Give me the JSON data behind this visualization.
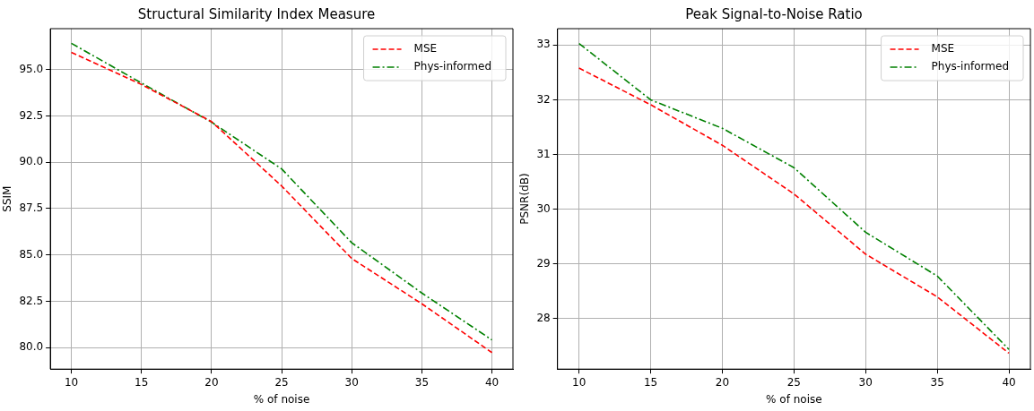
{
  "chart_data": [
    {
      "type": "line",
      "title": "Structural Similarity Index Measure",
      "xlabel": "% of noise",
      "ylabel": "SSIM",
      "x": [
        10,
        15,
        20,
        25,
        30,
        35,
        40
      ],
      "series": [
        {
          "name": "MSE",
          "color": "#ff0000",
          "line_style": "dashed",
          "values": [
            95.92,
            94.19,
            92.19,
            88.72,
            84.81,
            82.37,
            79.74
          ]
        },
        {
          "name": "Phys-informed",
          "color": "#008000",
          "line_style": "dashdot",
          "values": [
            96.41,
            94.27,
            92.16,
            89.64,
            85.66,
            82.95,
            80.42
          ]
        }
      ],
      "xlim": [
        8.5,
        41.5
      ],
      "xticks": [
        10,
        15,
        20,
        25,
        30,
        35,
        40
      ],
      "ylim": [
        78.85,
        97.2
      ],
      "yticks": [
        {
          "value": 80,
          "label": "80.0"
        },
        {
          "value": 82.5,
          "label": "82.5"
        },
        {
          "value": 85,
          "label": "85.0"
        },
        {
          "value": 87.5,
          "label": "87.5"
        },
        {
          "value": 90,
          "label": "90.0"
        },
        {
          "value": 92.5,
          "label": "92.5"
        },
        {
          "value": 95,
          "label": "95.0"
        }
      ],
      "grid": true,
      "legend": "top right",
      "marker": "none"
    },
    {
      "type": "line",
      "title": "Peak Signal-to-Noise Ratio",
      "xlabel": "% of noise",
      "ylabel": "PSNR(dB)",
      "x": [
        10,
        15,
        20,
        25,
        30,
        35,
        40
      ],
      "series": [
        {
          "name": "MSE",
          "color": "#ff0000",
          "line_style": "dashed",
          "values": [
            32.58,
            31.91,
            31.17,
            30.28,
            29.18,
            28.4,
            27.37
          ]
        },
        {
          "name": "Phys-informed",
          "color": "#008000",
          "line_style": "dashdot",
          "values": [
            33.03,
            32.0,
            31.48,
            30.76,
            29.58,
            28.78,
            27.44
          ]
        }
      ],
      "xlim": [
        8.5,
        41.5
      ],
      "xticks": [
        10,
        15,
        20,
        25,
        30,
        35,
        40
      ],
      "ylim": [
        27.08,
        33.3
      ],
      "yticks": [
        28,
        29,
        30,
        31,
        32,
        33
      ],
      "grid": true,
      "legend": "top right",
      "marker": "none"
    }
  ]
}
